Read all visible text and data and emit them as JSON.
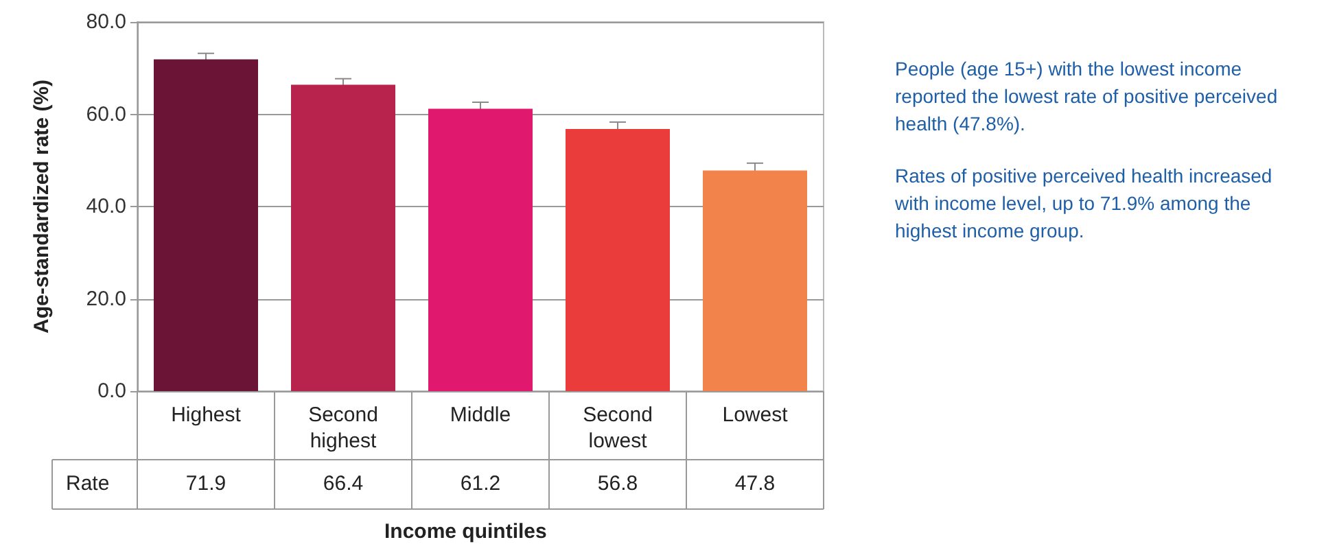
{
  "chart_data": {
    "type": "bar",
    "xlabel": "Income quintiles",
    "ylabel": "Age-standardized rate (%)",
    "categories": [
      "Highest",
      "Second\nhighest",
      "Middle",
      "Second\nlowest",
      "Lowest"
    ],
    "values": [
      71.9,
      66.4,
      61.2,
      56.8,
      47.8
    ],
    "colors": [
      "#6b1435",
      "#b8234d",
      "#e0186e",
      "#eb3c3c",
      "#f2834a"
    ],
    "errors": [
      1.3,
      1.3,
      1.4,
      1.5,
      1.6
    ],
    "ylim": [
      0,
      80
    ],
    "yticks": [
      {
        "value": 0,
        "label": "0.0"
      },
      {
        "value": 20,
        "label": "20.0"
      },
      {
        "value": 40,
        "label": "40.0"
      },
      {
        "value": 60,
        "label": "60.0"
      },
      {
        "value": 80,
        "label": "80.0"
      }
    ],
    "grid": "y",
    "data_labels": true,
    "annotations": [
      "Rate",
      "People (age 15+) with the lowest income reported the lowest rate of positive perceived health (47.8%).",
      "Rates of positive perceived health increased with income level, up to 71.9% among the highest income group."
    ]
  }
}
